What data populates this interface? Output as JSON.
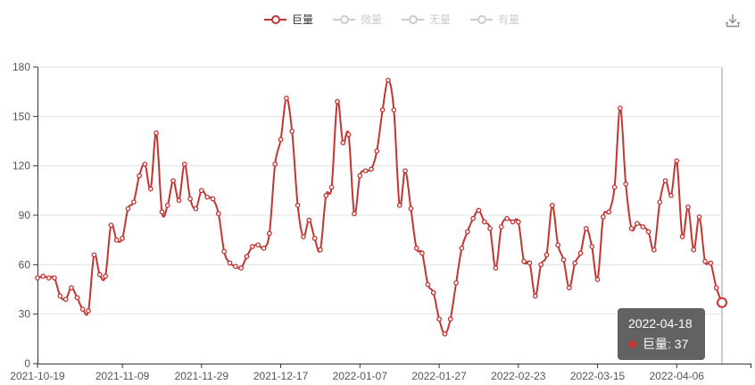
{
  "legend": {
    "items": [
      {
        "label": "巨量",
        "active": true
      },
      {
        "label": "微量",
        "active": false
      },
      {
        "label": "无量",
        "active": false
      },
      {
        "label": "有量",
        "active": false
      }
    ]
  },
  "toolbar": {
    "save_image_icon": "download-icon"
  },
  "tooltip": {
    "date": "2022-04-18",
    "series_label": "巨量: 37"
  },
  "colors": {
    "series": "#c23531",
    "inactive": "#cccccc",
    "tooltip_bg": "rgba(92,92,92,0.96)",
    "axis": "#333333",
    "grid_line": "#e0e0e6",
    "axis_label": "#555555",
    "axis_pointer": "#999999",
    "marker_fill": "#ffffff"
  },
  "y_axis_labels": [
    "0",
    "30",
    "60",
    "90",
    "120",
    "150",
    "180"
  ],
  "chart_data": {
    "type": "line",
    "title": "",
    "series": [
      {
        "name": "巨量",
        "values": [
          52,
          53,
          52,
          52,
          41,
          39,
          46,
          40,
          33,
          32,
          66,
          54,
          53,
          84,
          75,
          76,
          94,
          98,
          114,
          121,
          106,
          140,
          92,
          96,
          111,
          99,
          121,
          100,
          94,
          105,
          101,
          100,
          91,
          68,
          61,
          59,
          58,
          65,
          71,
          72,
          70,
          79,
          121,
          136,
          161,
          141,
          96,
          77,
          87,
          76,
          69,
          102,
          107,
          159,
          134,
          139,
          91,
          114,
          117,
          118,
          129,
          154,
          172,
          154,
          96,
          117,
          94,
          70,
          67,
          48,
          43,
          27,
          18,
          27,
          49,
          70,
          80,
          88,
          93,
          86,
          82,
          58,
          83,
          88,
          86,
          86,
          62,
          61,
          41,
          60,
          66,
          96,
          72,
          63,
          46,
          61,
          67,
          82,
          71,
          51,
          89,
          92,
          107,
          155,
          109,
          82,
          85,
          83,
          80,
          69,
          98,
          111,
          102,
          123,
          77,
          95,
          69,
          89,
          62,
          61,
          46,
          37
        ]
      }
    ],
    "categories": [
      "2021-10-19",
      "2021-10-20",
      "2021-10-21",
      "2021-10-22",
      "2021-10-25",
      "2021-10-26",
      "2021-10-27",
      "2021-10-28",
      "2021-10-29",
      "2021-11-01",
      "2021-11-02",
      "2021-11-03",
      "2021-11-04",
      "2021-11-05",
      "2021-11-08",
      "2021-11-09",
      "2021-11-10",
      "2021-11-11",
      "2021-11-12",
      "2021-11-15",
      "2021-11-16",
      "2021-11-17",
      "2021-11-18",
      "2021-11-19",
      "2021-11-22",
      "2021-11-23",
      "2021-11-24",
      "2021-11-25",
      "2021-11-26",
      "2021-11-29",
      "2021-11-30",
      "2021-12-01",
      "2021-12-02",
      "2021-12-03",
      "2021-12-06",
      "2021-12-07",
      "2021-12-08",
      "2021-12-09",
      "2021-12-10",
      "2021-12-13",
      "2021-12-14",
      "2021-12-15",
      "2021-12-16",
      "2021-12-17",
      "2021-12-20",
      "2021-12-21",
      "2021-12-22",
      "2021-12-23",
      "2021-12-24",
      "2021-12-27",
      "2021-12-28",
      "2021-12-29",
      "2021-12-30",
      "2021-12-31",
      "2022-01-04",
      "2022-01-05",
      "2022-01-06",
      "2022-01-07",
      "2022-01-10",
      "2022-01-11",
      "2022-01-12",
      "2022-01-13",
      "2022-01-14",
      "2022-01-17",
      "2022-01-18",
      "2022-01-19",
      "2022-01-20",
      "2022-01-21",
      "2022-01-24",
      "2022-01-25",
      "2022-01-26",
      "2022-01-27",
      "2022-01-28",
      "2022-02-07",
      "2022-02-08",
      "2022-02-09",
      "2022-02-10",
      "2022-02-11",
      "2022-02-14",
      "2022-02-15",
      "2022-02-16",
      "2022-02-17",
      "2022-02-18",
      "2022-02-21",
      "2022-02-22",
      "2022-02-23",
      "2022-02-24",
      "2022-02-25",
      "2022-02-28",
      "2022-03-01",
      "2022-03-02",
      "2022-03-03",
      "2022-03-04",
      "2022-03-07",
      "2022-03-08",
      "2022-03-09",
      "2022-03-10",
      "2022-03-11",
      "2022-03-14",
      "2022-03-15",
      "2022-03-16",
      "2022-03-17",
      "2022-03-18",
      "2022-03-21",
      "2022-03-22",
      "2022-03-23",
      "2022-03-24",
      "2022-03-25",
      "2022-03-28",
      "2022-03-29",
      "2022-03-30",
      "2022-03-31",
      "2022-04-01",
      "2022-04-06",
      "2022-04-07",
      "2022-04-08",
      "2022-04-11",
      "2022-04-12",
      "2022-04-13",
      "2022-04-14",
      "2022-04-15",
      "2022-04-18"
    ],
    "x_tick_labels": [
      "2021-10-19",
      "2021-11-09",
      "2021-11-29",
      "2021-12-17",
      "2022-01-07",
      "2022-01-27",
      "2022-02-23",
      "2022-03-15",
      "2022-04-06"
    ],
    "x_tick_indices": [
      0,
      15,
      29,
      43,
      57,
      71,
      85,
      99,
      113
    ],
    "xlabel": "",
    "ylabel": "",
    "ylim": [
      0,
      180
    ],
    "y_interval": 30,
    "grid": true,
    "smooth": true,
    "legend_position": "top-center",
    "highlight_index": 121,
    "highlight_value": 37
  }
}
